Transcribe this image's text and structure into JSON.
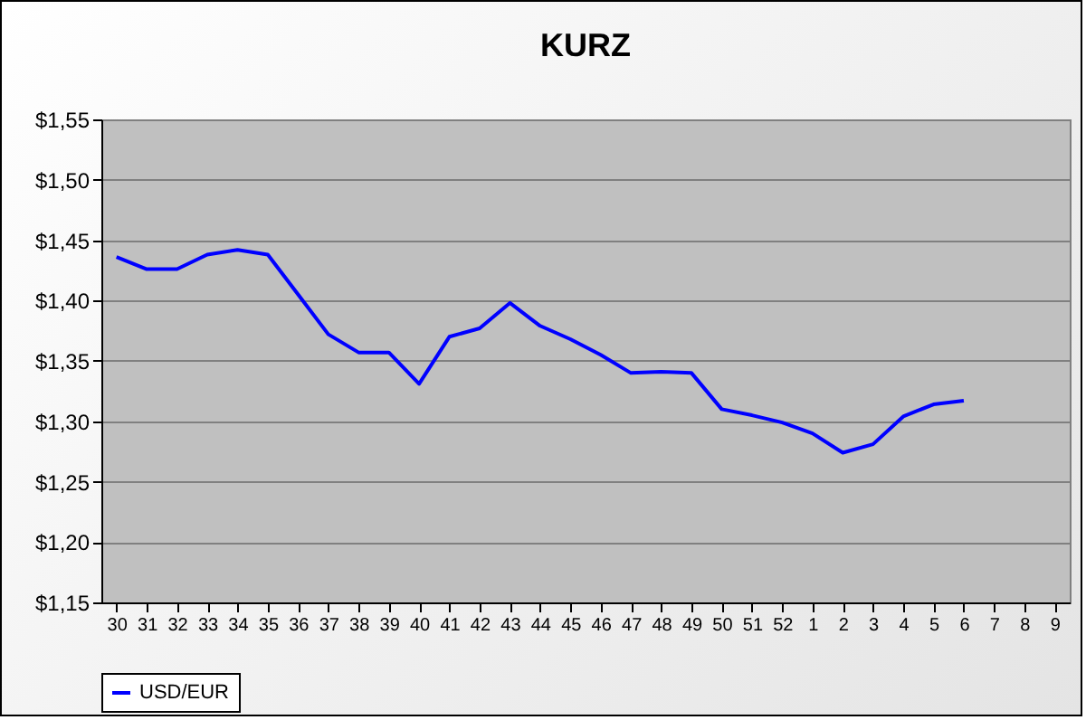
{
  "chart_data": {
    "type": "line",
    "title": "KURZ",
    "categories": [
      "30",
      "31",
      "32",
      "33",
      "34",
      "35",
      "36",
      "37",
      "38",
      "39",
      "40",
      "41",
      "42",
      "43",
      "44",
      "45",
      "46",
      "47",
      "48",
      "49",
      "50",
      "51",
      "52",
      "1",
      "2",
      "3",
      "4",
      "5",
      "6",
      "7",
      "8",
      "9"
    ],
    "series": [
      {
        "name": "USD/EUR",
        "color": "#0000ff",
        "values": [
          1.436,
          1.426,
          1.426,
          1.438,
          1.442,
          1.438,
          1.405,
          1.372,
          1.357,
          1.357,
          1.331,
          1.37,
          1.377,
          1.398,
          1.379,
          1.368,
          1.355,
          1.34,
          1.341,
          1.34,
          1.31,
          1.305,
          1.299,
          1.29,
          1.274,
          1.281,
          1.304,
          1.314,
          1.317,
          null,
          null,
          null
        ]
      }
    ],
    "ylim": [
      1.15,
      1.55
    ],
    "yticks": [
      {
        "value": 1.15,
        "label": "$1,15"
      },
      {
        "value": 1.2,
        "label": "$1,20"
      },
      {
        "value": 1.25,
        "label": "$1,25"
      },
      {
        "value": 1.3,
        "label": "$1,30"
      },
      {
        "value": 1.35,
        "label": "$1,35"
      },
      {
        "value": 1.4,
        "label": "$1,40"
      },
      {
        "value": 1.45,
        "label": "$1,45"
      },
      {
        "value": 1.5,
        "label": "$1,50"
      },
      {
        "value": 1.55,
        "label": "$1,55"
      }
    ],
    "grid": "y",
    "legend": "bottom",
    "marker": "none",
    "line_style": "solid"
  }
}
